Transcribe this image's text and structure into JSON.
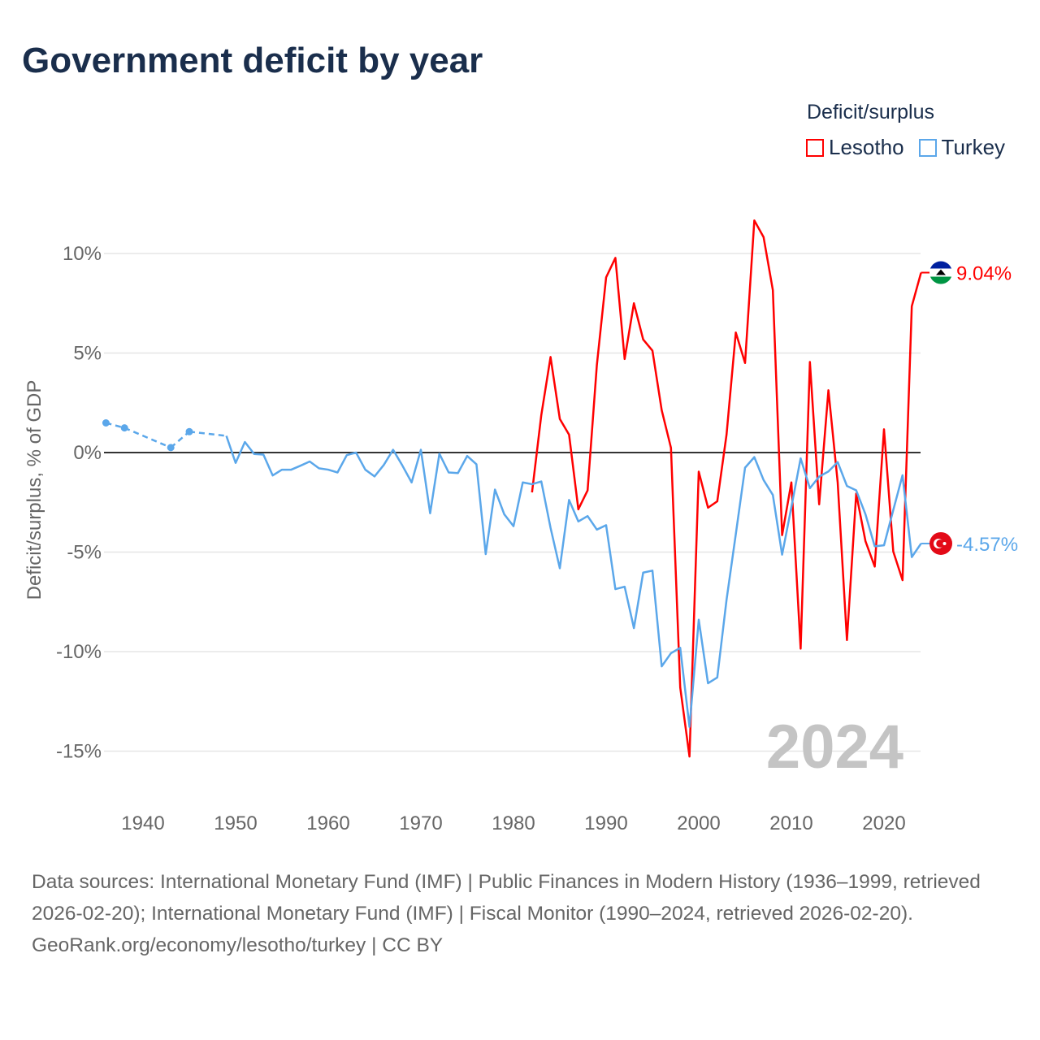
{
  "title": "Government deficit by year",
  "legend": {
    "title": "Deficit/surplus",
    "items": [
      {
        "name": "Lesotho",
        "color": "#ff0000"
      },
      {
        "name": "Turkey",
        "color": "#5ba7ea"
      }
    ]
  },
  "year_watermark": "2024",
  "footer": {
    "sources": "Data sources: International Monetary Fund (IMF) | Public Finances in Modern History (1936–1999, retrieved 2026-02-20); International Monetary Fund (IMF) | Fiscal Monitor (1990–2024, retrieved 2026-02-20).",
    "credit": "GeoRank.org/economy/lesotho/turkey | CC BY"
  },
  "chart_data": {
    "type": "line",
    "title": "Government deficit by year",
    "xlabel": "",
    "ylabel": "Deficit/surplus, % of GDP",
    "xlim": [
      1935.8,
      2024.3
    ],
    "ylim": [
      -17,
      12.5
    ],
    "xticks": [
      1940,
      1950,
      1960,
      1970,
      1980,
      1990,
      2000,
      2010,
      2020
    ],
    "xtick_labels": [
      "1940",
      "1950",
      "1960",
      "1970",
      "1980",
      "1990",
      "2000",
      "2010",
      "2020"
    ],
    "yticks": [
      10,
      5,
      0,
      -5,
      -10,
      -15
    ],
    "ytick_labels": [
      "10%",
      "5%",
      "0%",
      "-5%",
      "-10%",
      "-15%"
    ],
    "grid": true,
    "legend_position": "top-right",
    "series": [
      {
        "name": "Lesotho",
        "color": "#ff0000",
        "end_label": "9.04%",
        "x": [
          1982,
          1983,
          1984,
          1985,
          1986,
          1987,
          1988,
          1989,
          1990,
          1991,
          1992,
          1993,
          1994,
          1995,
          1996,
          1997,
          1998,
          1999,
          2000,
          2001,
          2002,
          2003,
          2004,
          2005,
          2006,
          2007,
          2008,
          2009,
          2010,
          2011,
          2012,
          2013,
          2014,
          2015,
          2016,
          2017,
          2018,
          2019,
          2020,
          2021,
          2022,
          2023,
          2024
        ],
        "y": [
          -2.0,
          1.88,
          4.8,
          1.69,
          0.9,
          -2.85,
          -1.9,
          4.4,
          8.8,
          9.78,
          4.7,
          7.5,
          5.68,
          5.12,
          2.13,
          0.24,
          -11.8,
          -15.27,
          -0.96,
          -2.77,
          -2.45,
          0.9,
          6.03,
          4.5,
          11.66,
          10.82,
          8.16,
          -4.15,
          -1.5,
          -9.85,
          4.55,
          -2.6,
          3.13,
          -1.5,
          -9.42,
          -2.06,
          -4.45,
          -5.73,
          1.17,
          -4.97,
          -6.41,
          7.35,
          9.04
        ]
      },
      {
        "name": "Turkey",
        "color": "#5ba7ea",
        "end_label": "-4.57%",
        "x": [
          1936,
          1938,
          1943,
          1945,
          1949,
          1950,
          1951,
          1952,
          1953,
          1954,
          1955,
          1956,
          1957,
          1958,
          1959,
          1960,
          1961,
          1962,
          1963,
          1964,
          1965,
          1966,
          1967,
          1968,
          1969,
          1970,
          1971,
          1972,
          1973,
          1974,
          1975,
          1976,
          1977,
          1978,
          1979,
          1980,
          1981,
          1982,
          1983,
          1984,
          1985,
          1986,
          1987,
          1988,
          1989,
          1990,
          1991,
          1992,
          1993,
          1994,
          1995,
          1996,
          1997,
          1998,
          1999,
          2000,
          2001,
          2002,
          2003,
          2004,
          2005,
          2006,
          2007,
          2008,
          2009,
          2010,
          2011,
          2012,
          2013,
          2014,
          2015,
          2016,
          2017,
          2018,
          2019,
          2020,
          2021,
          2022,
          2023,
          2024
        ],
        "y": [
          1.49,
          1.24,
          0.25,
          1.05,
          0.84,
          -0.52,
          0.53,
          -0.07,
          -0.1,
          -1.15,
          -0.86,
          -0.86,
          -0.66,
          -0.45,
          -0.79,
          -0.86,
          -1.0,
          -0.13,
          0.0,
          -0.86,
          -1.2,
          -0.62,
          0.14,
          -0.65,
          -1.5,
          0.14,
          -3.05,
          -0.06,
          -1.0,
          -1.03,
          -0.17,
          -0.59,
          -5.1,
          -1.86,
          -3.1,
          -3.7,
          -1.5,
          -1.59,
          -1.45,
          -3.78,
          -5.81,
          -2.38,
          -3.46,
          -3.19,
          -3.87,
          -3.65,
          -6.86,
          -6.74,
          -8.82,
          -6.03,
          -5.93,
          -10.74,
          -10.08,
          -9.81,
          -13.78,
          -8.4,
          -11.59,
          -11.3,
          -7.4,
          -4.1,
          -0.76,
          -0.23,
          -1.38,
          -2.13,
          -5.13,
          -2.74,
          -0.29,
          -1.79,
          -1.21,
          -0.95,
          -0.48,
          -1.68,
          -1.9,
          -3.1,
          -4.71,
          -4.66,
          -2.89,
          -1.14,
          -5.25,
          -4.57
        ]
      }
    ]
  }
}
